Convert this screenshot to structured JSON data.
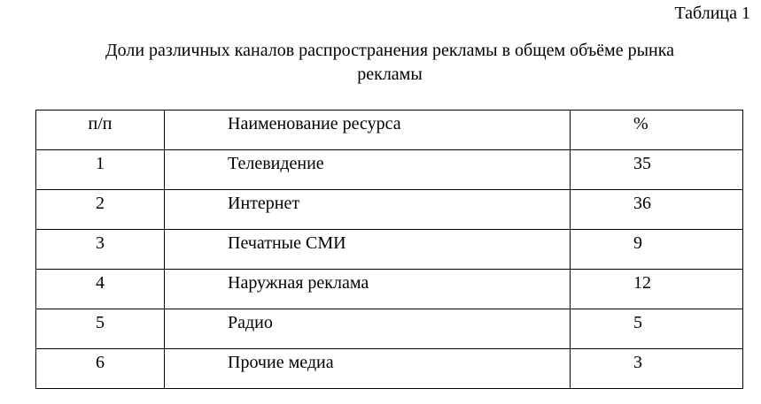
{
  "caption": "Таблица 1",
  "title": "Доли различных каналов распространения рекламы в общем объёме рынка рекламы",
  "table": {
    "headers": [
      "п/п",
      "Наименование ресурса",
      "%"
    ],
    "rows": [
      [
        "1",
        "Телевидение",
        "35"
      ],
      [
        "2",
        "Интернет",
        "36"
      ],
      [
        "3",
        "Печатные СМИ",
        "9"
      ],
      [
        "4",
        "Наружная реклама",
        "12"
      ],
      [
        "5",
        "Радио",
        "5"
      ],
      [
        "6",
        "Прочие медиа",
        "3"
      ]
    ]
  }
}
